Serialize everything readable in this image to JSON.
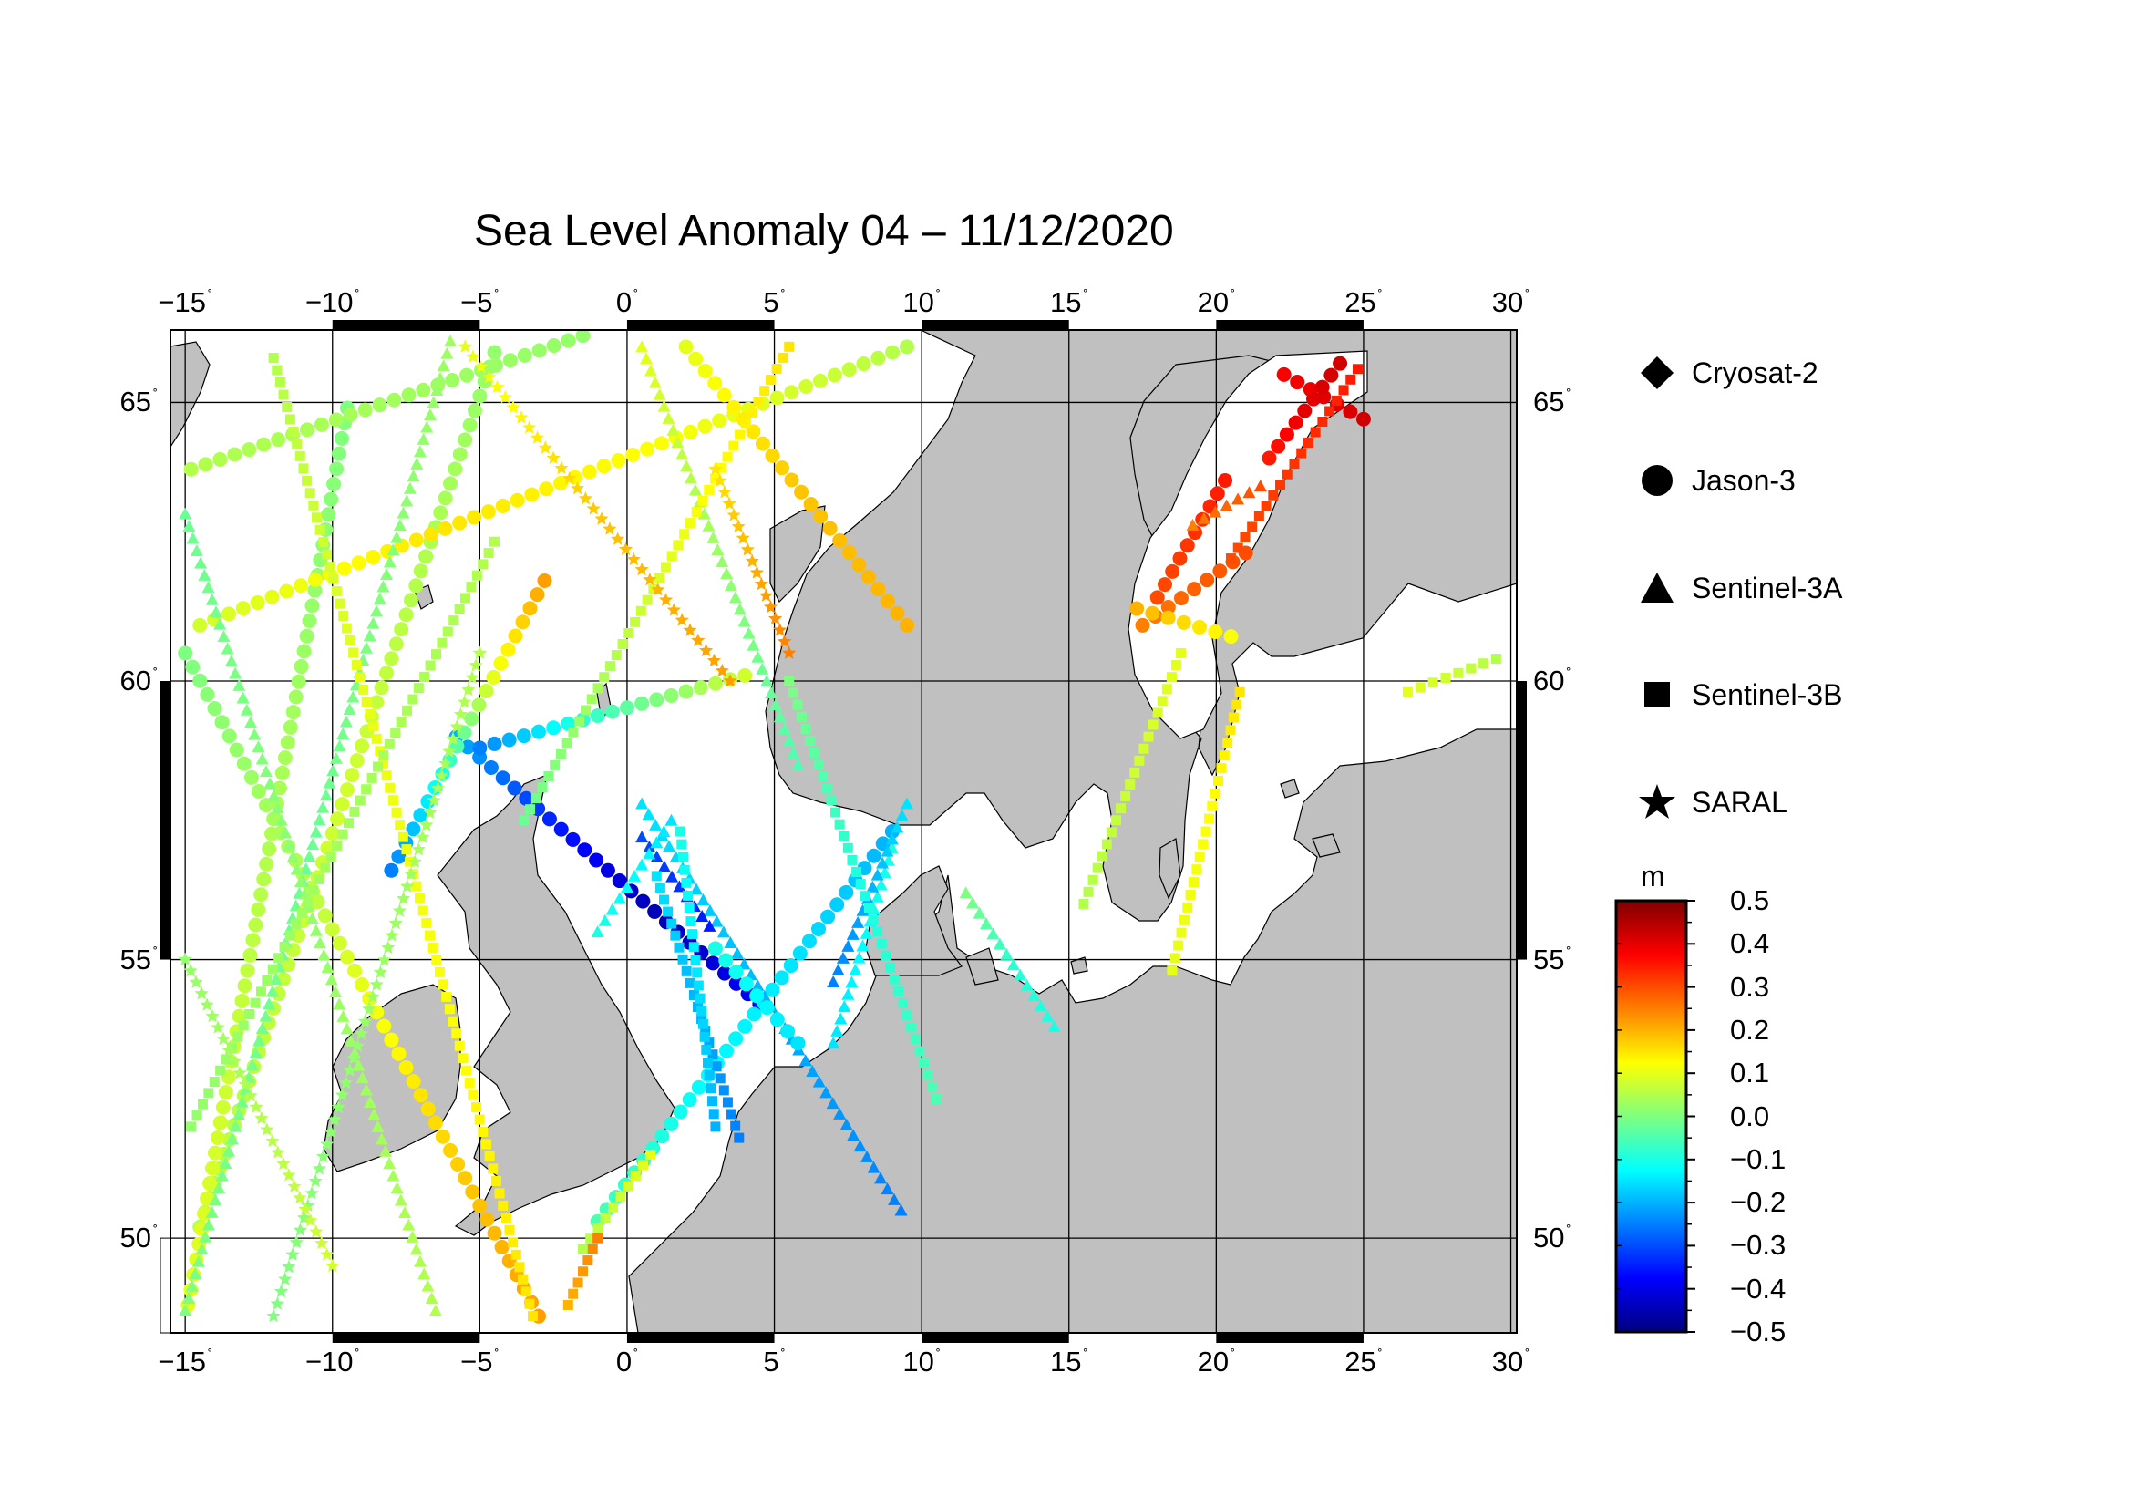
{
  "title": "Sea Level Anomaly 04 – 11/12/2020",
  "map": {
    "lon_range": [
      -15.5,
      30.2
    ],
    "lat_range": [
      48.3,
      66.3
    ],
    "lon_ticks": [
      {
        "value": -15,
        "label": "−15"
      },
      {
        "value": -10,
        "label": "−10"
      },
      {
        "value": -5,
        "label": "−5"
      },
      {
        "value": 0,
        "label": "0"
      },
      {
        "value": 5,
        "label": "5"
      },
      {
        "value": 10,
        "label": "10"
      },
      {
        "value": 15,
        "label": "15"
      },
      {
        "value": 20,
        "label": "20"
      },
      {
        "value": 25,
        "label": "25"
      },
      {
        "value": 30,
        "label": "30"
      }
    ],
    "lat_ticks": [
      {
        "value": 50,
        "label": "50"
      },
      {
        "value": 55,
        "label": "55"
      },
      {
        "value": 60,
        "label": "60"
      },
      {
        "value": 65,
        "label": "65"
      }
    ],
    "land_color": "#c0c0c0",
    "sea_color": "#ffffff"
  },
  "legend": {
    "items": [
      {
        "label": "Cryosat-2",
        "symbol": "diamond"
      },
      {
        "label": "Jason-3",
        "symbol": "circle"
      },
      {
        "label": "Sentinel-3A",
        "symbol": "triangle"
      },
      {
        "label": "Sentinel-3B",
        "symbol": "square"
      },
      {
        "label": "SARAL",
        "symbol": "star"
      }
    ]
  },
  "colorbar": {
    "unit": "m",
    "min": -0.5,
    "max": 0.5,
    "ticks": [
      "0.5",
      "0.4",
      "0.3",
      "0.2",
      "0.1",
      "0.0",
      "−0.1",
      "−0.2",
      "−0.3",
      "−0.4",
      "−0.5"
    ],
    "colors": [
      "#00007f",
      "#0000ff",
      "#007fff",
      "#00ffff",
      "#7fff7f",
      "#ffff00",
      "#ff7f00",
      "#ff0000",
      "#7f0000"
    ]
  },
  "tracks": [
    {
      "mission": "Jason-3",
      "start": [
        -14.5,
        50.2
      ],
      "end": [
        -4.5,
        65.9
      ],
      "anomaly": [
        0.05,
        0.08,
        0.02
      ]
    },
    {
      "mission": "Jason-3",
      "start": [
        -9.5,
        64.9
      ],
      "end": [
        -14.9,
        48.8
      ],
      "anomaly": [
        0.0,
        0.05,
        0.1
      ]
    },
    {
      "mission": "Jason-3",
      "start": [
        -15.0,
        60.5
      ],
      "end": [
        -3.0,
        48.6
      ],
      "anomaly": [
        0.0,
        0.05,
        0.15,
        0.22
      ]
    },
    {
      "mission": "Jason-3",
      "start": [
        -14.8,
        63.8
      ],
      "end": [
        -1.5,
        66.2
      ],
      "anomaly": [
        0.05,
        0.02
      ]
    },
    {
      "mission": "Jason-3",
      "start": [
        -14.5,
        61.0
      ],
      "end": [
        9.5,
        66.0
      ],
      "anomaly": [
        0.08,
        0.15,
        0.12,
        0.05
      ]
    },
    {
      "mission": "Jason-3",
      "start": [
        -5.8,
        59.0
      ],
      "end": [
        4.5,
        54.2
      ],
      "anomaly": [
        -0.2,
        -0.35,
        -0.45,
        -0.38
      ]
    },
    {
      "mission": "Jason-3",
      "start": [
        -5.0,
        58.8
      ],
      "end": [
        4.0,
        60.1
      ],
      "anomaly": [
        -0.25,
        -0.1,
        0.0,
        0.08
      ]
    },
    {
      "mission": "Jason-3",
      "start": [
        -1.0,
        50.3
      ],
      "end": [
        9.0,
        57.3
      ],
      "anomaly": [
        -0.05,
        -0.12,
        -0.15,
        -0.2
      ]
    },
    {
      "mission": "Jason-3",
      "start": [
        -8.0,
        56.6
      ],
      "end": [
        -2.8,
        61.8
      ],
      "anomaly": [
        -0.25,
        -0.1,
        0.1,
        0.22
      ]
    },
    {
      "mission": "Jason-3",
      "start": [
        2.0,
        66.0
      ],
      "end": [
        9.5,
        61.0
      ],
      "anomaly": [
        0.1,
        0.18,
        0.2
      ]
    },
    {
      "mission": "Jason-3",
      "start": [
        17.5,
        61.0
      ],
      "end": [
        21.0,
        62.3
      ],
      "anomaly": [
        0.25,
        0.28,
        0.3
      ]
    },
    {
      "mission": "Jason-3",
      "start": [
        18.0,
        61.5
      ],
      "end": [
        20.3,
        63.6
      ],
      "anomaly": [
        0.3,
        0.35
      ]
    },
    {
      "mission": "Jason-3",
      "start": [
        22.3,
        65.5
      ],
      "end": [
        25.0,
        64.7
      ],
      "anomaly": [
        0.38,
        0.4,
        0.42
      ]
    },
    {
      "mission": "Jason-3",
      "start": [
        21.8,
        64.0
      ],
      "end": [
        24.2,
        65.7
      ],
      "anomaly": [
        0.35,
        0.4,
        0.42
      ]
    },
    {
      "mission": "Jason-3",
      "start": [
        20.5,
        60.8
      ],
      "end": [
        17.3,
        61.3
      ],
      "anomaly": [
        0.12,
        0.2
      ]
    },
    {
      "mission": "Sentinel-3A",
      "start": [
        -15.0,
        48.7
      ],
      "end": [
        -6.0,
        66.1
      ],
      "anomaly": [
        0.0,
        -0.02,
        0.03
      ]
    },
    {
      "mission": "Sentinel-3A",
      "start": [
        -6.5,
        48.7
      ],
      "end": [
        -15.0,
        63.0
      ],
      "anomaly": [
        0.05,
        0.02,
        -0.02
      ]
    },
    {
      "mission": "Sentinel-3A",
      "start": [
        0.5,
        57.8
      ],
      "end": [
        9.3,
        50.5
      ],
      "anomaly": [
        -0.15,
        -0.2,
        -0.25
      ]
    },
    {
      "mission": "Sentinel-3A",
      "start": [
        0.5,
        57.2
      ],
      "end": [
        2.8,
        55.6
      ],
      "anomaly": [
        -0.3,
        -0.35
      ]
    },
    {
      "mission": "Sentinel-3A",
      "start": [
        0.5,
        66.0
      ],
      "end": [
        5.8,
        58.5
      ],
      "anomaly": [
        0.1,
        0.05,
        0.0,
        -0.05
      ]
    },
    {
      "mission": "Sentinel-3A",
      "start": [
        19.2,
        62.8
      ],
      "end": [
        21.5,
        63.5
      ],
      "anomaly": [
        0.25,
        0.3
      ]
    },
    {
      "mission": "Sentinel-3A",
      "start": [
        11.5,
        56.2
      ],
      "end": [
        14.5,
        53.8
      ],
      "anomaly": [
        0.0,
        -0.08,
        -0.1
      ]
    },
    {
      "mission": "Sentinel-3A",
      "start": [
        7.0,
        53.5
      ],
      "end": [
        9.0,
        57.0
      ],
      "anomaly": [
        -0.15,
        -0.1
      ]
    },
    {
      "mission": "Sentinel-3A",
      "start": [
        9.5,
        57.8
      ],
      "end": [
        7.0,
        54.6
      ],
      "anomaly": [
        -0.15,
        -0.25
      ]
    },
    {
      "mission": "Sentinel-3B",
      "start": [
        -12.0,
        65.8
      ],
      "end": [
        -3.2,
        48.6
      ],
      "anomaly": [
        0.05,
        0.1,
        0.12,
        0.15
      ]
    },
    {
      "mission": "Sentinel-3B",
      "start": [
        -14.8,
        52.0
      ],
      "end": [
        -4.5,
        62.5
      ],
      "anomaly": [
        0.02,
        0.05
      ]
    },
    {
      "mission": "Sentinel-3B",
      "start": [
        -3.5,
        57.5
      ],
      "end": [
        5.5,
        66.0
      ],
      "anomaly": [
        -0.02,
        0.05,
        0.12,
        0.15
      ]
    },
    {
      "mission": "Sentinel-3B",
      "start": [
        1.0,
        56.5
      ],
      "end": [
        3.8,
        51.8
      ],
      "anomaly": [
        -0.15,
        -0.2,
        -0.25
      ]
    },
    {
      "mission": "Sentinel-3B",
      "start": [
        1.8,
        57.3
      ],
      "end": [
        3.0,
        52.0
      ],
      "anomaly": [
        -0.1,
        -0.15,
        -0.2
      ]
    },
    {
      "mission": "Sentinel-3B",
      "start": [
        10.5,
        52.5
      ],
      "end": [
        5.5,
        60.0
      ],
      "anomaly": [
        -0.05,
        -0.1,
        0.0
      ]
    },
    {
      "mission": "Sentinel-3B",
      "start": [
        18.5,
        54.8
      ],
      "end": [
        20.8,
        59.8
      ],
      "anomaly": [
        0.1,
        0.12,
        0.15
      ]
    },
    {
      "mission": "Sentinel-3B",
      "start": [
        15.5,
        56.0
      ],
      "end": [
        18.8,
        60.5
      ],
      "anomaly": [
        0.05,
        0.1
      ]
    },
    {
      "mission": "Sentinel-3B",
      "start": [
        20.5,
        62.2
      ],
      "end": [
        24.8,
        65.6
      ],
      "anomaly": [
        0.3,
        0.35
      ]
    },
    {
      "mission": "Sentinel-3B",
      "start": [
        -1.5,
        49.8
      ],
      "end": [
        0.8,
        51.5
      ],
      "anomaly": [
        0.05,
        0.1
      ]
    },
    {
      "mission": "Sentinel-3B",
      "start": [
        -2.0,
        48.8
      ],
      "end": [
        -1.0,
        50.0
      ],
      "anomaly": [
        0.2,
        0.25
      ]
    },
    {
      "mission": "Sentinel-3B",
      "start": [
        26.5,
        59.8
      ],
      "end": [
        29.5,
        60.4
      ],
      "anomaly": [
        0.1,
        0.05
      ]
    },
    {
      "mission": "SARAL",
      "start": [
        -5.5,
        66.0
      ],
      "end": [
        3.5,
        60.0
      ],
      "anomaly": [
        0.1,
        0.18,
        0.22
      ]
    },
    {
      "mission": "SARAL",
      "start": [
        -12.0,
        48.6
      ],
      "end": [
        -5.0,
        60.5
      ],
      "anomaly": [
        0.0,
        0.05
      ]
    },
    {
      "mission": "SARAL",
      "start": [
        3.0,
        63.8
      ],
      "end": [
        5.5,
        60.5
      ],
      "anomaly": [
        0.15,
        0.25
      ]
    },
    {
      "mission": "SARAL",
      "start": [
        -15.0,
        55.0
      ],
      "end": [
        -10.0,
        49.5
      ],
      "anomaly": [
        0.02,
        0.08
      ]
    },
    {
      "mission": "Jason-3",
      "start": [
        5.8,
        53.5
      ],
      "end": [
        3.0,
        55.2
      ],
      "anomaly": [
        -0.15,
        -0.1
      ]
    },
    {
      "mission": "Sentinel-3A",
      "start": [
        -1.0,
        55.5
      ],
      "end": [
        1.5,
        57.5
      ],
      "anomaly": [
        -0.1,
        -0.15
      ]
    }
  ]
}
